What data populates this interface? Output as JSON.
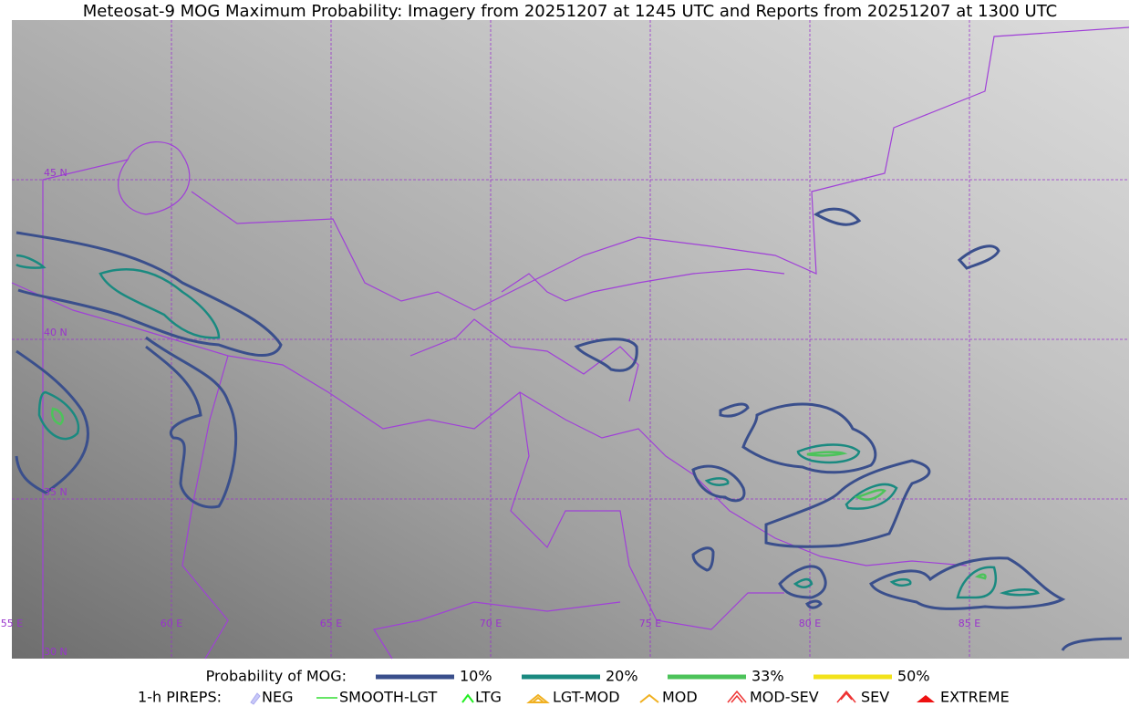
{
  "title": "Meteosat-9 MOG Maximum Probability: Imagery from 20251207 at 1245 UTC and Reports from 20251207 at 1300 UTC",
  "map": {
    "lon_labels": [
      "55 E",
      "60 E",
      "65 E",
      "70 E",
      "75 E",
      "80 E",
      "85 E"
    ],
    "lat_labels": [
      "45 N",
      "40 N",
      "35 N",
      "30 N"
    ]
  },
  "legend": {
    "probability_title": "Probability of MOG:",
    "probability_items": [
      {
        "label": "10%",
        "color": "#3a4f8c"
      },
      {
        "label": "20%",
        "color": "#1a8a80"
      },
      {
        "label": "33%",
        "color": "#4cc35a"
      },
      {
        "label": "50%",
        "color": "#f2e21a"
      }
    ],
    "pireps_title": "1-h PIREPS:",
    "pireps_items": [
      "NEG",
      "SMOOTH-LGT",
      "LTG",
      "LGT-MOD",
      "MOD",
      "MOD-SEV",
      "SEV",
      "EXTREME"
    ]
  }
}
